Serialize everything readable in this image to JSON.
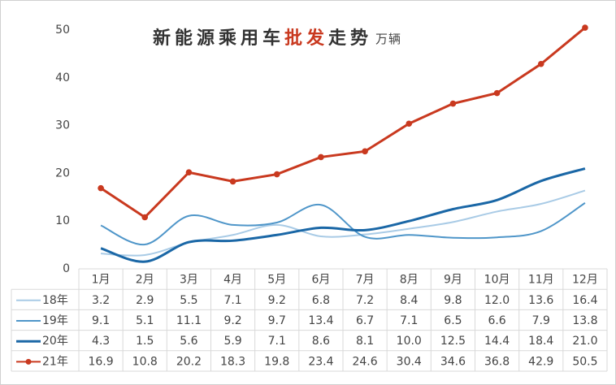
{
  "chart_data": {
    "type": "line",
    "title": [
      "新能源乘用车",
      "批发",
      "走势"
    ],
    "title_colors": [
      "#333333",
      "#c9391f",
      "#333333"
    ],
    "unit": "万辆",
    "categories": [
      "1月",
      "2月",
      "3月",
      "4月",
      "5月",
      "6月",
      "7月",
      "8月",
      "9月",
      "10月",
      "11月",
      "12月"
    ],
    "ylim": [
      0,
      50
    ],
    "yticks": [
      0,
      10,
      20,
      30,
      40,
      50
    ],
    "grid": false,
    "series": [
      {
        "name": "18年",
        "color": "#a9cbe6",
        "smooth": true,
        "markers": false,
        "values": [
          3.2,
          2.9,
          5.5,
          7.1,
          9.2,
          6.8,
          7.2,
          8.4,
          9.8,
          12.0,
          13.6,
          16.4
        ],
        "value_labels": [
          "3.2",
          "2.9",
          "5.5",
          "7.1",
          "9.2",
          "6.8",
          "7.2",
          "8.4",
          "9.8",
          "12.0",
          "13.6",
          "16.4"
        ]
      },
      {
        "name": "19年",
        "color": "#4f96c9",
        "smooth": true,
        "markers": false,
        "values": [
          9.1,
          5.1,
          11.1,
          9.2,
          9.7,
          13.4,
          6.7,
          7.1,
          6.5,
          6.6,
          7.9,
          13.8
        ]
      },
      {
        "name": "20年",
        "color": "#1a67a6",
        "smooth": true,
        "markers": false,
        "values": [
          4.3,
          1.5,
          5.6,
          5.9,
          7.1,
          8.6,
          8.1,
          10.0,
          12.5,
          14.4,
          18.4,
          21.0
        ],
        "value_labels": [
          "4.3",
          "1.5",
          "5.6",
          "5.9",
          "7.1",
          "8.6",
          "8.1",
          "10.0",
          "12.5",
          "14.4",
          "18.4",
          "21.0"
        ]
      },
      {
        "name": "21年",
        "color": "#c9391f",
        "smooth": false,
        "markers": true,
        "values": [
          16.9,
          10.8,
          20.2,
          18.3,
          19.8,
          23.4,
          24.6,
          30.4,
          34.6,
          36.8,
          42.9,
          50.5
        ]
      }
    ]
  }
}
